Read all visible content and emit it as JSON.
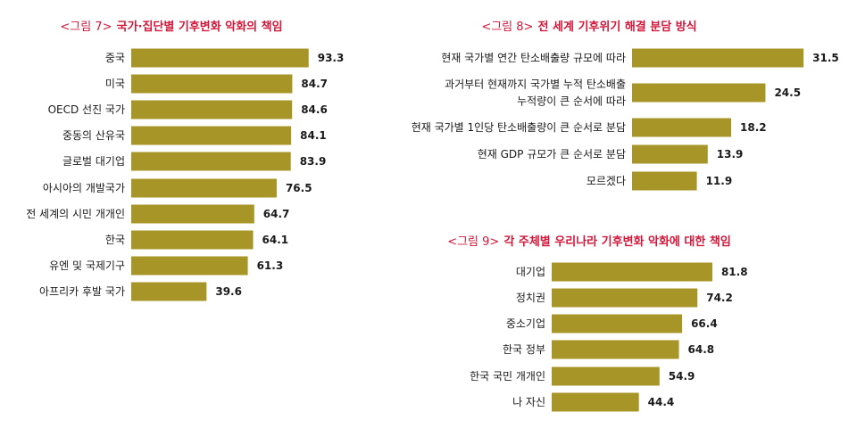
{
  "colors": {
    "bar": "#a89527",
    "title": "#d1173a",
    "text": "#1a1a1a"
  },
  "chart_data": [
    {
      "type": "bar",
      "orientation": "horizontal",
      "title_prefix": "<그림 7>",
      "title": "국가·집단별 기후변화 악화의 책임",
      "categories": [
        "중국",
        "미국",
        "OECD 선진 국가",
        "중동의 산유국",
        "글로벌 대기업",
        "아시아의 개발국가",
        "전 세계의 시민 개개인",
        "한국",
        "유엔 및 국제기구",
        "아프리카 후발 국가"
      ],
      "values": [
        93.3,
        84.7,
        84.6,
        84.1,
        83.9,
        76.5,
        64.7,
        64.1,
        61.3,
        39.6
      ]
    },
    {
      "type": "bar",
      "orientation": "horizontal",
      "title_prefix": "<그림 8>",
      "title": "전 세계 기후위기 해결 분담 방식",
      "categories": [
        [
          "현재 국가별 연간 탄소배출량 규모에 따라"
        ],
        [
          "과거부터 현재까지 국가별 누적 탄소배출",
          "누적량이 큰 순서에 따라"
        ],
        [
          "현재 국가별 1인당 탄소배출량이 큰 순서로 분담"
        ],
        [
          "현재 GDP 규모가 큰 순서로 분담"
        ],
        [
          "모르겠다"
        ]
      ],
      "values": [
        31.5,
        24.5,
        18.2,
        13.9,
        11.9
      ]
    },
    {
      "type": "bar",
      "orientation": "horizontal",
      "title_prefix": "<그림 9>",
      "title": "각 주체별 우리나라 기후변화 악화에 대한 책임",
      "categories": [
        "대기업",
        "정치권",
        "중소기업",
        "한국 정부",
        "한국 국민 개개인",
        "나 자신"
      ],
      "values": [
        81.8,
        74.2,
        66.4,
        64.8,
        54.9,
        44.4
      ]
    }
  ]
}
